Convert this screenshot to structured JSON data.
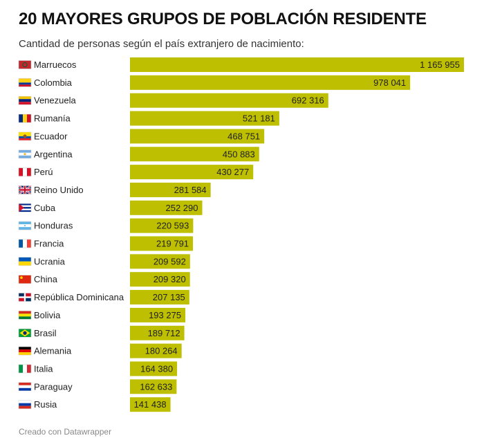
{
  "title": "20 MAYORES GRUPOS DE POBLACIÓN RESIDENTE",
  "subtitle": "Cantidad de personas según el país extranjero de nacimiento:",
  "footer": "Creado con Datawrapper",
  "colors": {
    "bar": "#bdbf00"
  },
  "chart_data": {
    "type": "bar",
    "orientation": "horizontal",
    "categories": [
      "Marruecos",
      "Colombia",
      "Venezuela",
      "Rumanía",
      "Ecuador",
      "Argentina",
      "Perú",
      "Reino Unido",
      "Cuba",
      "Honduras",
      "Francia",
      "Ucrania",
      "China",
      "República Dominicana",
      "Bolivia",
      "Brasil",
      "Alemania",
      "Italia",
      "Paraguay",
      "Rusia"
    ],
    "values": [
      1165955,
      978041,
      692316,
      521181,
      468751,
      450883,
      430277,
      281584,
      252290,
      220593,
      219791,
      209592,
      209320,
      207135,
      193275,
      189712,
      180264,
      164380,
      162633,
      141438
    ],
    "value_labels": [
      "1 165 955",
      "978 041",
      "692 316",
      "521 181",
      "468 751",
      "450 883",
      "430 277",
      "281 584",
      "252 290",
      "220 593",
      "219 791",
      "209 592",
      "209 320",
      "207 135",
      "193 275",
      "189 712",
      "180 264",
      "164 380",
      "162 633",
      "141 438"
    ],
    "flag_icons": [
      "flag-morocco-icon",
      "flag-colombia-icon",
      "flag-venezuela-icon",
      "flag-romania-icon",
      "flag-ecuador-icon",
      "flag-argentina-icon",
      "flag-peru-icon",
      "flag-uk-icon",
      "flag-cuba-icon",
      "flag-honduras-icon",
      "flag-france-icon",
      "flag-ukraine-icon",
      "flag-china-icon",
      "flag-dominican-republic-icon",
      "flag-bolivia-icon",
      "flag-brazil-icon",
      "flag-germany-icon",
      "flag-italy-icon",
      "flag-paraguay-icon",
      "flag-russia-icon"
    ],
    "xlim": [
      0,
      1165955
    ],
    "grid": false,
    "legend": "none"
  }
}
